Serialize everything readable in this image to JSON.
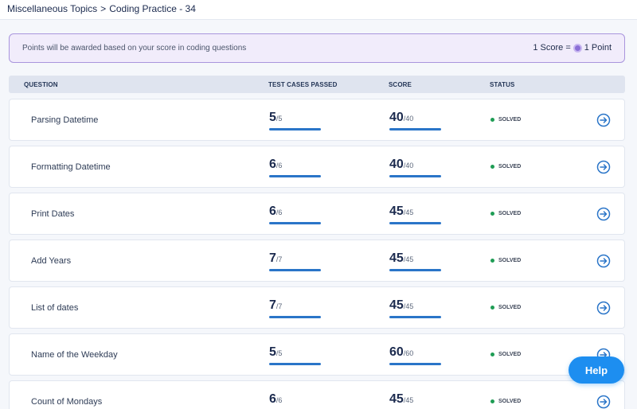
{
  "breadcrumb": {
    "parent": "Miscellaneous Topics",
    "separator": ">",
    "current": "Coding Practice - 34"
  },
  "banner": {
    "text": "Points will be awarded based on your score in coding questions",
    "score_label": "1 Score =",
    "point_label": "1 Point"
  },
  "table": {
    "headers": {
      "question": "QUESTION",
      "test_cases": "TEST CASES PASSED",
      "score": "SCORE",
      "status": "STATUS"
    },
    "rows": [
      {
        "name": "Parsing Datetime",
        "passed": "5",
        "total": "/5",
        "passed_fraction": 1,
        "score": "40",
        "max": "/40",
        "score_fraction": 1,
        "status": "SOLVED"
      },
      {
        "name": "Formatting Datetime",
        "passed": "6",
        "total": "/6",
        "passed_fraction": 1,
        "score": "40",
        "max": "/40",
        "score_fraction": 1,
        "status": "SOLVED"
      },
      {
        "name": "Print Dates",
        "passed": "6",
        "total": "/6",
        "passed_fraction": 1,
        "score": "45",
        "max": "/45",
        "score_fraction": 1,
        "status": "SOLVED"
      },
      {
        "name": "Add Years",
        "passed": "7",
        "total": "/7",
        "passed_fraction": 1,
        "score": "45",
        "max": "/45",
        "score_fraction": 1,
        "status": "SOLVED"
      },
      {
        "name": "List of dates",
        "passed": "7",
        "total": "/7",
        "passed_fraction": 1,
        "score": "45",
        "max": "/45",
        "score_fraction": 1,
        "status": "SOLVED"
      },
      {
        "name": "Name of the Weekday",
        "passed": "5",
        "total": "/5",
        "passed_fraction": 1,
        "score": "60",
        "max": "/60",
        "score_fraction": 1,
        "status": "SOLVED"
      },
      {
        "name": "Count of Mondays",
        "passed": "6",
        "total": "/6",
        "passed_fraction": 1,
        "score": "45",
        "max": "/45",
        "score_fraction": 1,
        "status": "SOLVED"
      }
    ]
  },
  "help": {
    "label": "Help"
  },
  "colors": {
    "accent": "#2a75c8",
    "solved": "#1f9d55",
    "banner_border": "#a995dd",
    "help_button": "#1d8ef0"
  },
  "icons": {
    "row_action": "arrow-circle-right-icon",
    "point_coin": "coin-icon"
  }
}
